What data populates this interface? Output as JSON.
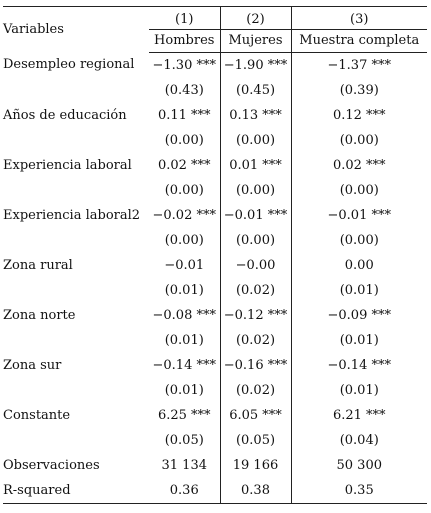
{
  "table": {
    "header": {
      "variables_label": "Variables",
      "column_numbers": [
        "(1)",
        "(2)",
        "(3)"
      ],
      "column_groups": [
        "Hombres",
        "Mujeres",
        "Muestra completa"
      ]
    },
    "rows": [
      {
        "label": "Desempleo regional",
        "coef": [
          "−1.30 ***",
          "−1.90 ***",
          "−1.37 ***"
        ],
        "se": [
          "(0.43)",
          "(0.45)",
          "(0.39)"
        ]
      },
      {
        "label": "Años de educación",
        "coef": [
          "0.11 ***",
          "0.13 ***",
          "0.12 ***"
        ],
        "se": [
          "(0.00)",
          "(0.00)",
          "(0.00)"
        ]
      },
      {
        "label": "Experiencia laboral",
        "coef": [
          "0.02 ***",
          "0.01 ***",
          "0.02 ***"
        ],
        "se": [
          "(0.00)",
          "(0.00)",
          "(0.00)"
        ]
      },
      {
        "label": "Experiencia laboral2",
        "coef": [
          "−0.02 ***",
          "−0.01 ***",
          "−0.01 ***"
        ],
        "se": [
          "(0.00)",
          "(0.00)",
          "(0.00)"
        ]
      },
      {
        "label": "Zona rural",
        "coef": [
          "−0.01",
          "−0.00",
          "0.00"
        ],
        "se": [
          "(0.01)",
          "(0.02)",
          "(0.01)"
        ]
      },
      {
        "label": "Zona norte",
        "coef": [
          "−0.08 ***",
          "−0.12 ***",
          "−0.09 ***"
        ],
        "se": [
          "(0.01)",
          "(0.02)",
          "(0.01)"
        ]
      },
      {
        "label": "Zona sur",
        "coef": [
          "−0.14 ***",
          "−0.16 ***",
          "−0.14 ***"
        ],
        "se": [
          "(0.01)",
          "(0.02)",
          "(0.01)"
        ]
      },
      {
        "label": "Constante",
        "coef": [
          "6.25 ***",
          "6.05 ***",
          "6.21 ***"
        ],
        "se": [
          "(0.05)",
          "(0.05)",
          "(0.04)"
        ]
      }
    ],
    "stats": [
      {
        "label": "Observaciones",
        "values": [
          "31 134",
          "19 166",
          "50 300"
        ]
      },
      {
        "label": "R-squared",
        "values": [
          "0.36",
          "0.38",
          "0.35"
        ]
      }
    ]
  }
}
